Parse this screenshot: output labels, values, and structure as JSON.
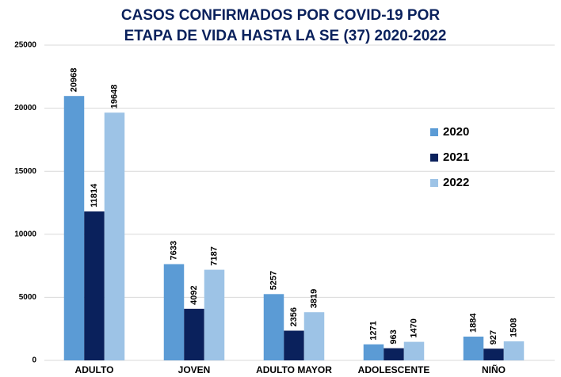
{
  "chart_data": {
    "type": "bar",
    "title": [
      "CASOS CONFIRMADOS POR COVID-19 POR",
      "ETAPA DE VIDA HASTA LA SE (37) 2020-2022"
    ],
    "categories": [
      "ADULTO",
      "JOVEN",
      "ADULTO MAYOR",
      "ADOLESCENTE",
      "NIÑO"
    ],
    "series": [
      {
        "name": "2020",
        "color": "#5b9bd5",
        "values": [
          20968,
          7633,
          5257,
          1271,
          1884
        ]
      },
      {
        "name": "2021",
        "color": "#0a215c",
        "values": [
          11814,
          4092,
          2356,
          963,
          927
        ]
      },
      {
        "name": "2022",
        "color": "#9dc3e6",
        "values": [
          19648,
          7187,
          3819,
          1470,
          1508
        ]
      }
    ],
    "ylim": [
      0,
      25000
    ],
    "yticks": [
      0,
      5000,
      10000,
      15000,
      20000,
      25000
    ],
    "grid": true,
    "legend": "right",
    "data_labels": true
  }
}
